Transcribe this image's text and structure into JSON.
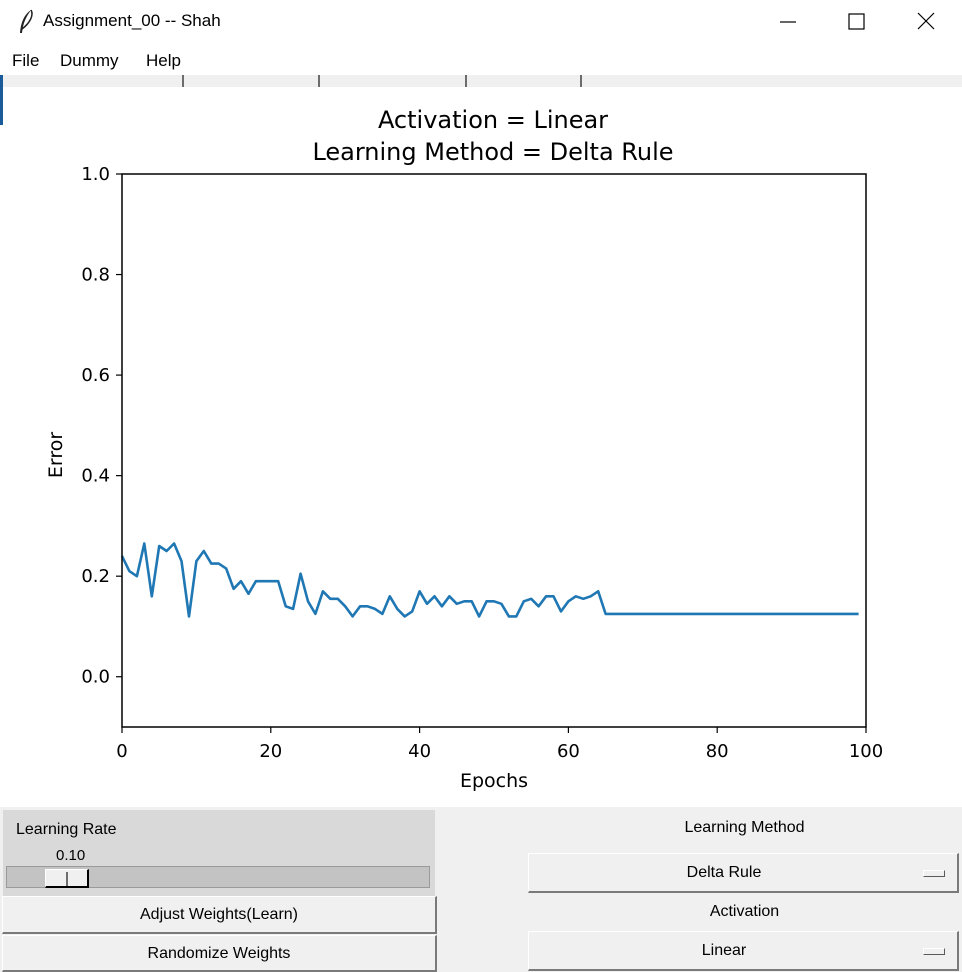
{
  "window": {
    "title": "Assignment_00 -- Shah",
    "icon": "feather-icon"
  },
  "menu": {
    "items": [
      {
        "label": "File"
      },
      {
        "label": "Dummy"
      },
      {
        "label": "Help"
      }
    ]
  },
  "chart_data": {
    "type": "line",
    "title": "Activation = Linear",
    "subtitle": "Learning Method = Delta Rule",
    "xlabel": "Epochs",
    "ylabel": "Error",
    "xlim": [
      0,
      100
    ],
    "ylim": [
      -0.1,
      1.0
    ],
    "xticks": [
      "0",
      "20",
      "40",
      "60",
      "80",
      "100"
    ],
    "yticks": [
      "0.0",
      "0.2",
      "0.4",
      "0.6",
      "0.8",
      "1.0"
    ],
    "grid": false,
    "color": "#1f77b4",
    "series": [
      {
        "x": [
          0,
          1,
          2,
          3,
          4,
          5,
          6,
          7,
          8,
          9,
          10,
          11,
          12,
          13,
          14,
          15,
          16,
          17,
          18,
          19,
          20,
          21,
          22,
          23,
          24,
          25,
          26,
          27,
          28,
          29,
          30,
          31,
          32,
          33,
          34,
          35,
          36,
          37,
          38,
          39,
          40,
          41,
          42,
          43,
          44,
          45,
          46,
          47,
          48,
          49,
          50,
          51,
          52,
          53,
          54,
          55,
          56,
          57,
          58,
          59,
          60,
          61,
          62,
          63,
          64,
          65,
          66,
          67,
          68,
          69,
          70,
          71,
          72,
          73,
          74,
          75,
          76,
          77,
          78,
          79,
          80,
          81,
          82,
          83,
          84,
          85,
          86,
          87,
          88,
          89,
          90,
          91,
          92,
          93,
          94,
          95,
          96,
          97,
          98,
          99
        ],
        "y": [
          0.24,
          0.21,
          0.2,
          0.265,
          0.16,
          0.26,
          0.25,
          0.265,
          0.23,
          0.12,
          0.23,
          0.25,
          0.225,
          0.225,
          0.215,
          0.175,
          0.19,
          0.165,
          0.19,
          0.19,
          0.19,
          0.19,
          0.14,
          0.135,
          0.205,
          0.15,
          0.125,
          0.17,
          0.155,
          0.155,
          0.14,
          0.12,
          0.14,
          0.14,
          0.135,
          0.125,
          0.16,
          0.135,
          0.12,
          0.13,
          0.17,
          0.145,
          0.16,
          0.14,
          0.16,
          0.145,
          0.15,
          0.15,
          0.12,
          0.15,
          0.15,
          0.145,
          0.12,
          0.12,
          0.15,
          0.155,
          0.14,
          0.16,
          0.16,
          0.13,
          0.15,
          0.16,
          0.155,
          0.16,
          0.17,
          0.125,
          0.125,
          0.125,
          0.125,
          0.125,
          0.125,
          0.125,
          0.125,
          0.125,
          0.125,
          0.125,
          0.125,
          0.125,
          0.125,
          0.125,
          0.125,
          0.125,
          0.125,
          0.125,
          0.125,
          0.125,
          0.125,
          0.125,
          0.125,
          0.125,
          0.125,
          0.125,
          0.125,
          0.125,
          0.125,
          0.125,
          0.125,
          0.125,
          0.125,
          0.125
        ]
      }
    ]
  },
  "controls": {
    "learning_rate_label": "Learning Rate",
    "learning_rate_value": "0.10",
    "learning_rate_fraction": 0.1,
    "adjust_button": "Adjust Weights(Learn)",
    "randomize_button": "Randomize Weights",
    "learning_method_label": "Learning Method",
    "learning_method_value": "Delta Rule",
    "activation_label": "Activation",
    "activation_value": "Linear"
  }
}
